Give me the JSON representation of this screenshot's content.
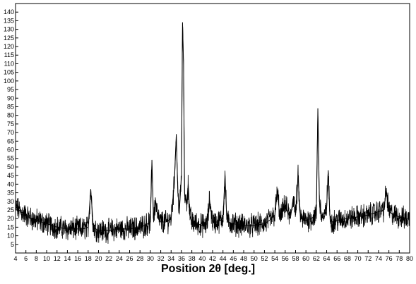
{
  "chart_data": {
    "type": "line",
    "title": "",
    "xlabel": "Position 2θ [deg.]",
    "ylabel": "",
    "xlim": [
      4,
      80
    ],
    "ylim": [
      0,
      145
    ],
    "x_ticks": [
      4,
      6,
      8,
      10,
      12,
      14,
      16,
      18,
      20,
      22,
      24,
      26,
      28,
      30,
      32,
      34,
      36,
      38,
      40,
      42,
      44,
      46,
      48,
      50,
      52,
      54,
      56,
      58,
      60,
      62,
      64,
      66,
      68,
      70,
      72,
      74,
      76,
      78,
      80
    ],
    "y_ticks": [
      5,
      10,
      15,
      20,
      25,
      30,
      35,
      40,
      45,
      50,
      55,
      60,
      65,
      70,
      75,
      80,
      85,
      90,
      95,
      100,
      105,
      110,
      115,
      120,
      125,
      130,
      135,
      140
    ],
    "grid": false,
    "line_color": "#000000",
    "series": [
      {
        "x": [
          4,
          5,
          6,
          7,
          8,
          9,
          10,
          12,
          14,
          16,
          17,
          18,
          18.5,
          19,
          20,
          22,
          24,
          26,
          28,
          29,
          30,
          30.3,
          30.6,
          31,
          31.5,
          32,
          33,
          34,
          34.6,
          35,
          35.3,
          35.6,
          36,
          36.2,
          36.4,
          36.6,
          37,
          37.3,
          37.6,
          38,
          40,
          41,
          41.4,
          42,
          43,
          44,
          44.4,
          44.7,
          45,
          46,
          48,
          50,
          52,
          53,
          54,
          54.5,
          55,
          56,
          57,
          57.6,
          58,
          58.5,
          58.8,
          59,
          60,
          61,
          62,
          62.3,
          62.6,
          63,
          63.5,
          64,
          64.3,
          64.6,
          65,
          66,
          68,
          70,
          72,
          73,
          74,
          75,
          75.5,
          76,
          77,
          78,
          79,
          80
        ],
        "y": [
          27,
          24,
          22,
          20,
          19,
          18,
          17,
          15,
          14,
          14,
          14,
          15,
          37,
          15,
          13,
          13,
          14,
          14,
          15,
          16,
          18,
          54,
          20,
          30,
          20,
          18,
          18,
          20,
          40,
          69,
          35,
          25,
          45,
          134,
          110,
          35,
          28,
          40,
          22,
          18,
          16,
          17,
          31,
          18,
          18,
          20,
          45,
          22,
          18,
          17,
          16,
          16,
          17,
          19,
          22,
          36,
          20,
          28,
          20,
          33,
          22,
          45,
          25,
          20,
          19,
          20,
          22,
          84,
          30,
          22,
          20,
          27,
          48,
          22,
          18,
          19,
          20,
          21,
          22,
          23,
          24,
          25,
          36,
          24,
          22,
          21,
          20,
          20
        ]
      }
    ]
  }
}
